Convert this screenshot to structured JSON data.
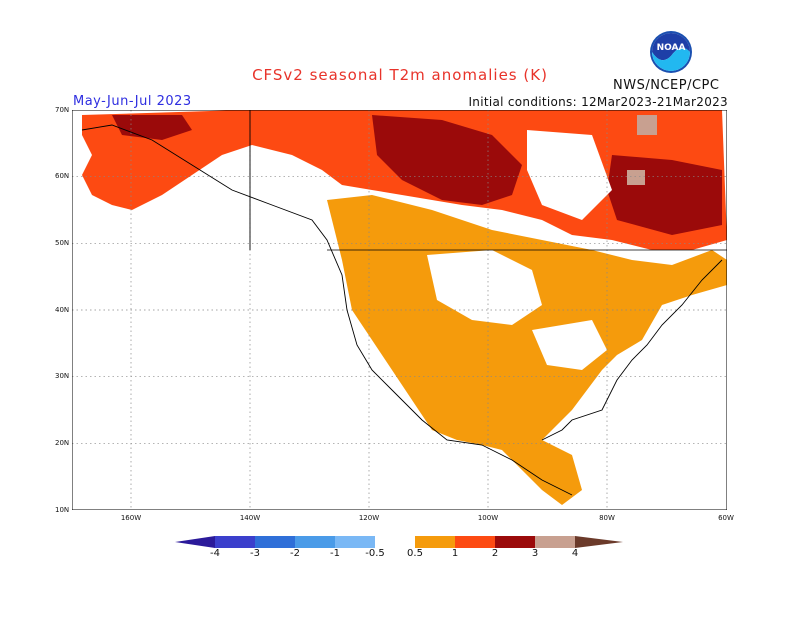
{
  "header": {
    "title": "CFSv2 seasonal T2m anomalies (K)",
    "period": "May-Jun-Jul 2023",
    "initial_conditions": "Initial conditions: 12Mar2023-21Mar2023",
    "agency": "NWS/NCEP/CPC",
    "logo_text": "NOAA"
  },
  "map": {
    "projection": "lat-lon",
    "lat_labels": [
      "70N",
      "60N",
      "50N",
      "40N",
      "30N",
      "20N",
      "10N"
    ],
    "lon_labels": [
      "160W",
      "140W",
      "120W",
      "100W",
      "80W",
      "60W"
    ],
    "grid": true
  },
  "colorbar": {
    "labels": [
      "-4",
      "-3",
      "-2",
      "-1",
      "-0.5",
      "0.5",
      "1",
      "2",
      "3",
      "4"
    ],
    "colors": [
      "#2b1a9a",
      "#3b3fcc",
      "#2f6fd8",
      "#4a9be8",
      "#7ab8f5",
      "#ffffff",
      "#f59b0c",
      "#fd4a12",
      "#9b0a0a",
      "#c8a090",
      "#6b3a2a"
    ]
  }
}
